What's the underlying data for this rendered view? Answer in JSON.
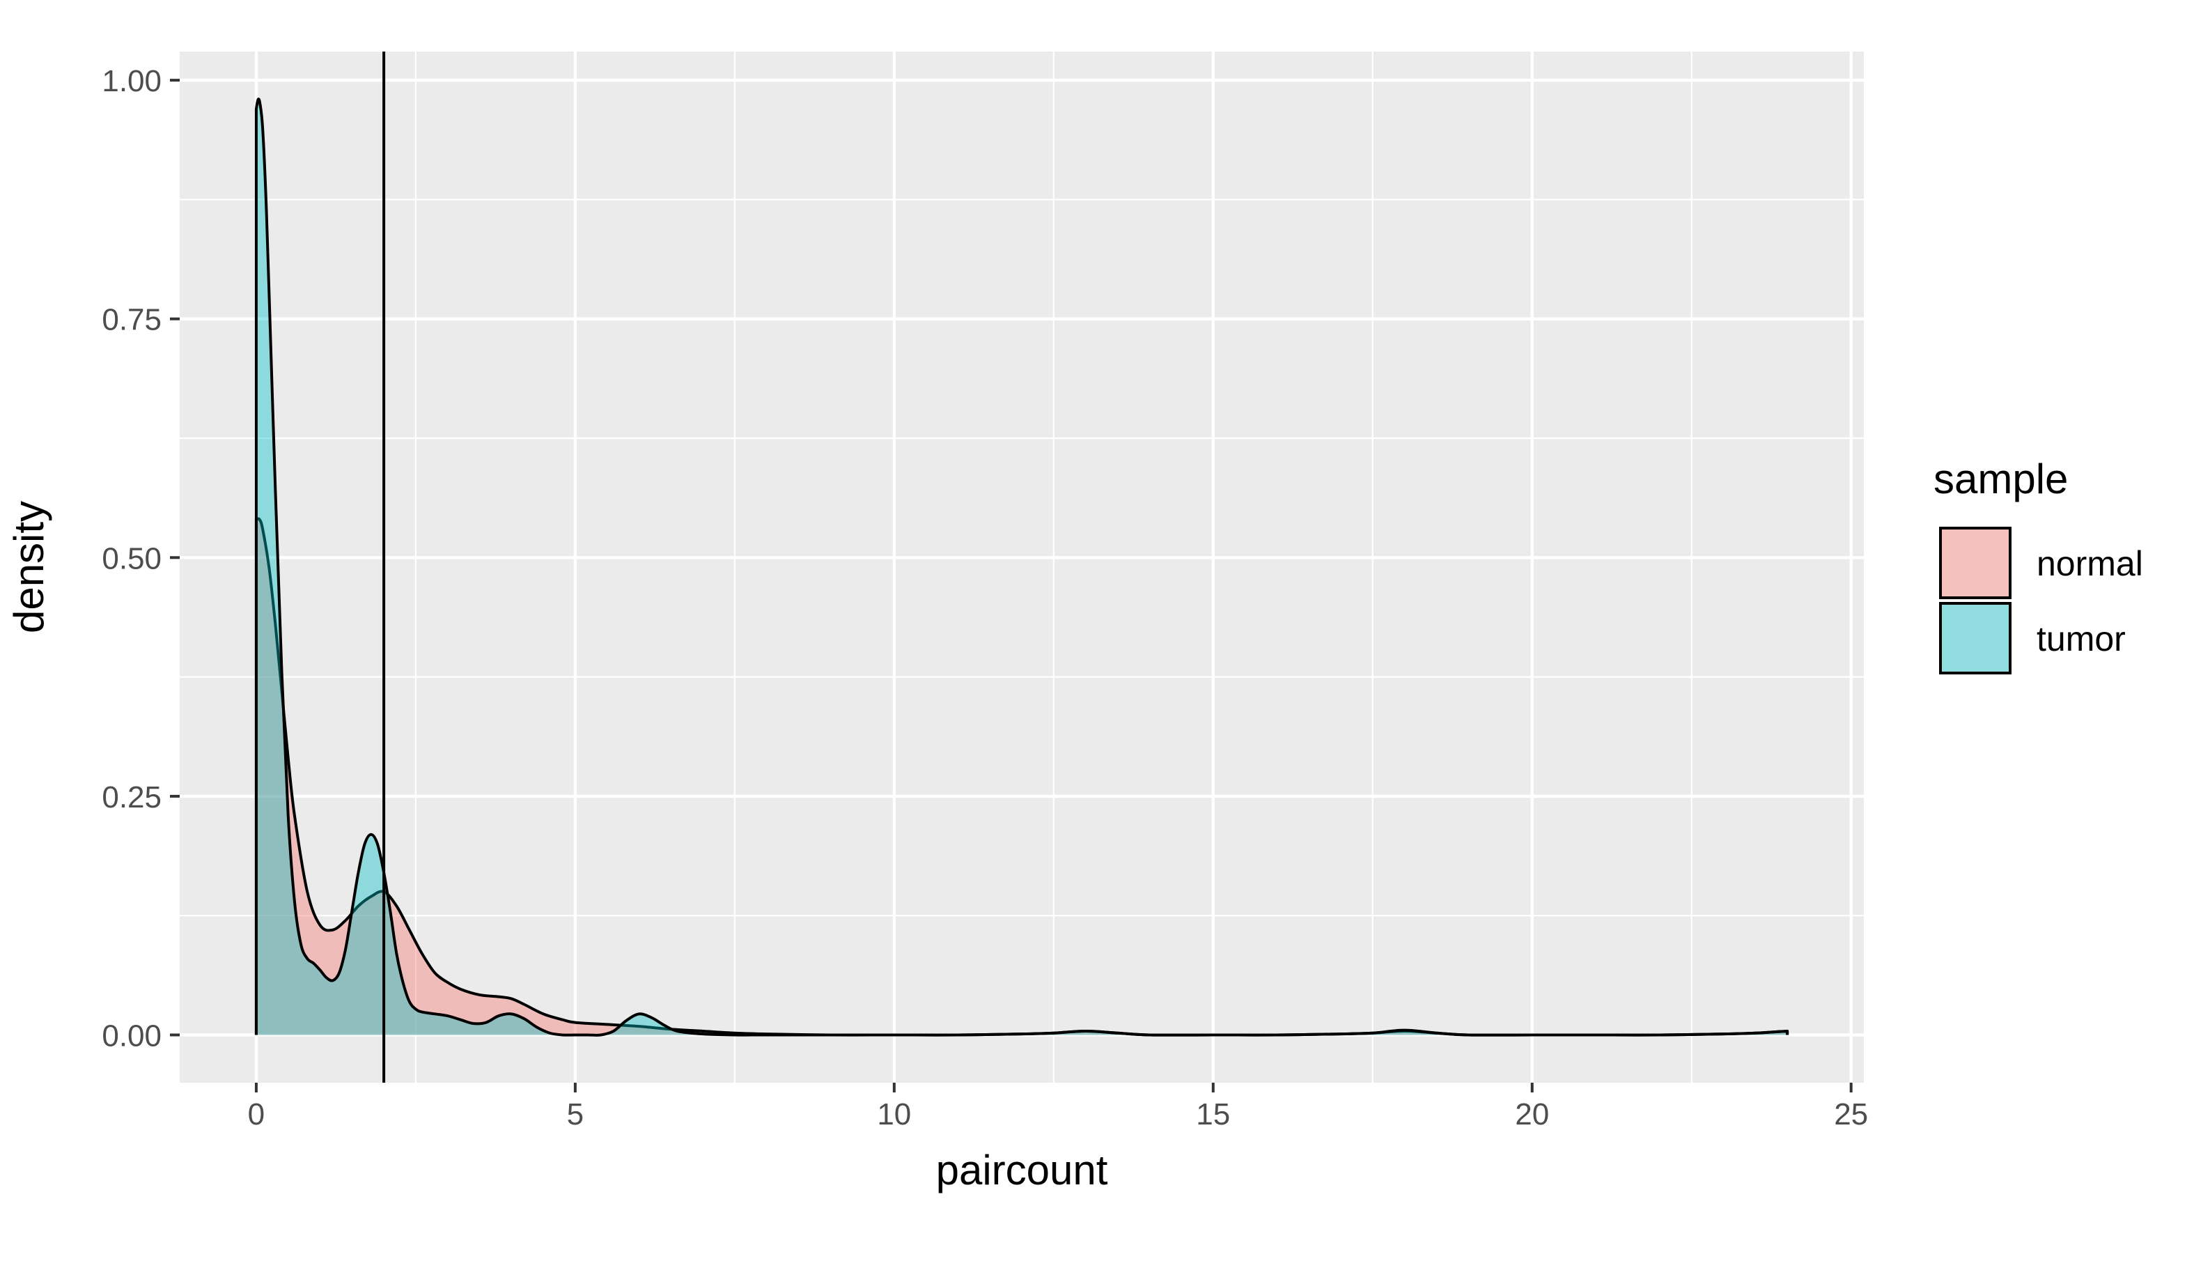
{
  "chart_data": {
    "type": "area",
    "title": "",
    "xlabel": "paircount",
    "ylabel": "density",
    "xlim": [
      -1.2,
      25.2
    ],
    "ylim": [
      -0.05,
      1.03
    ],
    "x_ticks": [
      0,
      5,
      10,
      15,
      20,
      25
    ],
    "x_tick_labels": [
      "0",
      "5",
      "10",
      "15",
      "20",
      "25"
    ],
    "y_ticks": [
      0,
      0.25,
      0.5,
      0.75,
      1.0
    ],
    "y_tick_labels": [
      "0.00",
      "0.25",
      "0.50",
      "0.75",
      "1.00"
    ],
    "grid": true,
    "vline": {
      "x": 2
    },
    "legend": {
      "title": "sample",
      "placement": "right",
      "entries": [
        "normal",
        "tumor"
      ]
    },
    "series": [
      {
        "name": "normal",
        "color": "#F8766D",
        "x": [
          0,
          0.05,
          0.1,
          0.2,
          0.3,
          0.4,
          0.5,
          0.6,
          0.8,
          1.0,
          1.2,
          1.4,
          1.6,
          1.8,
          2.0,
          2.2,
          2.4,
          2.6,
          2.8,
          3.0,
          3.2,
          3.5,
          3.8,
          4.0,
          4.2,
          4.5,
          4.8,
          5.0,
          5.5,
          6.0,
          6.5,
          7.0,
          7.5,
          8.0,
          9,
          10,
          11,
          12,
          12.5,
          13.0,
          13.5,
          14,
          15,
          16,
          17,
          17.5,
          18.0,
          18.5,
          19,
          20,
          21,
          22,
          23,
          23.5,
          24.0
        ],
        "y": [
          0.54,
          0.54,
          0.53,
          0.49,
          0.43,
          0.36,
          0.29,
          0.23,
          0.15,
          0.115,
          0.11,
          0.12,
          0.135,
          0.145,
          0.15,
          0.135,
          0.11,
          0.085,
          0.065,
          0.055,
          0.048,
          0.042,
          0.04,
          0.038,
          0.032,
          0.022,
          0.016,
          0.013,
          0.011,
          0.009,
          0.006,
          0.004,
          0.002,
          0.001,
          0.0,
          0.0,
          0.0,
          0.001,
          0.002,
          0.004,
          0.002,
          0.0,
          0.0,
          0.0,
          0.001,
          0.002,
          0.004,
          0.002,
          0.0,
          0.0,
          0.0,
          0.0,
          0.001,
          0.002,
          0.004
        ]
      },
      {
        "name": "tumor",
        "color": "#00BFC4",
        "x": [
          0,
          0.03,
          0.06,
          0.1,
          0.15,
          0.2,
          0.3,
          0.4,
          0.5,
          0.6,
          0.7,
          0.8,
          0.9,
          1.0,
          1.1,
          1.2,
          1.3,
          1.4,
          1.5,
          1.6,
          1.7,
          1.8,
          1.9,
          2.0,
          2.1,
          2.2,
          2.3,
          2.4,
          2.5,
          2.6,
          2.8,
          3.0,
          3.2,
          3.4,
          3.6,
          3.8,
          4.0,
          4.2,
          4.4,
          4.6,
          4.8,
          5.0,
          5.2,
          5.4,
          5.6,
          5.8,
          6.0,
          6.2,
          6.4,
          6.6,
          7.0,
          7.5,
          8.0,
          9,
          10,
          11,
          12,
          12.5,
          13.0,
          13.5,
          14,
          15,
          16,
          17,
          17.5,
          18.0,
          18.5,
          19,
          20,
          21,
          22,
          23,
          23.5,
          24.0
        ],
        "y": [
          0.97,
          0.98,
          0.975,
          0.95,
          0.88,
          0.78,
          0.57,
          0.38,
          0.23,
          0.14,
          0.095,
          0.08,
          0.075,
          0.068,
          0.06,
          0.057,
          0.065,
          0.09,
          0.13,
          0.17,
          0.2,
          0.21,
          0.2,
          0.17,
          0.13,
          0.085,
          0.055,
          0.035,
          0.027,
          0.024,
          0.022,
          0.02,
          0.016,
          0.012,
          0.013,
          0.02,
          0.022,
          0.017,
          0.008,
          0.002,
          0.0,
          0.0,
          0.0,
          0.0,
          0.004,
          0.015,
          0.022,
          0.018,
          0.01,
          0.004,
          0.001,
          0.0,
          0.0,
          0.0,
          0.0,
          0.0,
          0.001,
          0.002,
          0.004,
          0.002,
          0.0,
          0.0,
          0.0,
          0.001,
          0.002,
          0.005,
          0.002,
          0.0,
          0.0,
          0.0,
          0.0,
          0.001,
          0.002,
          0.004
        ]
      }
    ]
  }
}
